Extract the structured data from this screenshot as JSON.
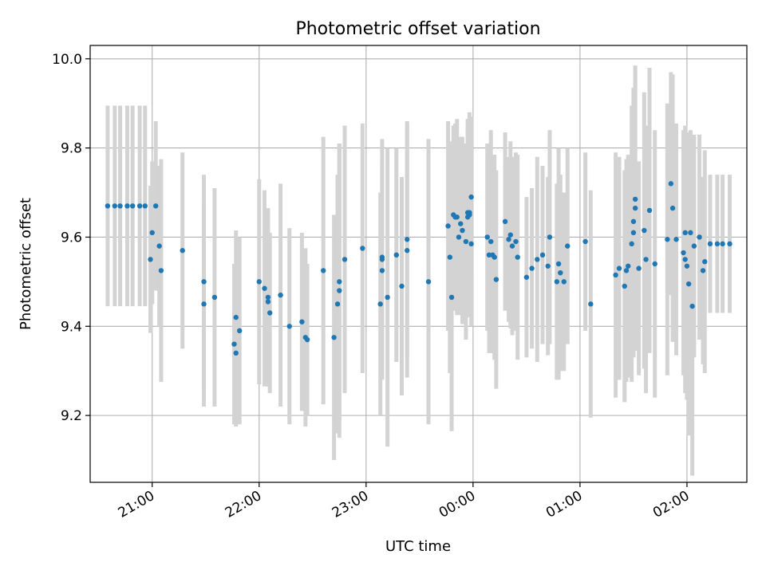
{
  "chart_data": {
    "type": "scatter",
    "title": "Photometric offset variation",
    "xlabel": "UTC time",
    "ylabel": "Photometric offset",
    "x_axis": {
      "kind": "time",
      "unit": "hour",
      "min": 20.42,
      "max": 26.56
    },
    "ylim": [
      9.05,
      10.03
    ],
    "x_ticks": [
      {
        "value": 21,
        "label": "21:00"
      },
      {
        "value": 22,
        "label": "22:00"
      },
      {
        "value": 23,
        "label": "23:00"
      },
      {
        "value": 24,
        "label": "00:00"
      },
      {
        "value": 25,
        "label": "01:00"
      },
      {
        "value": 26,
        "label": "02:00"
      }
    ],
    "y_ticks": [
      {
        "value": 9.2,
        "label": "9.2"
      },
      {
        "value": 9.4,
        "label": "9.4"
      },
      {
        "value": 9.6,
        "label": "9.6"
      },
      {
        "value": 9.8,
        "label": "9.8"
      },
      {
        "value": 10.0,
        "label": "10.0"
      }
    ],
    "grid": true,
    "colors": {
      "point": "#1f77b4",
      "errorbar": "#d3d3d3",
      "grid": "#b0b0b0"
    },
    "series": [
      {
        "points": [
          {
            "x": "20:35",
            "y": 9.67,
            "yerr": 0.225
          },
          {
            "x": "20:39",
            "y": 9.67,
            "yerr": 0.225
          },
          {
            "x": "20:42",
            "y": 9.67,
            "yerr": 0.225
          },
          {
            "x": "20:46",
            "y": 9.67,
            "yerr": 0.225
          },
          {
            "x": "20:49",
            "y": 9.67,
            "yerr": 0.225
          },
          {
            "x": "20:53",
            "y": 9.67,
            "yerr": 0.225
          },
          {
            "x": "20:56",
            "y": 9.67,
            "yerr": 0.225
          },
          {
            "x": "20:59",
            "y": 9.55,
            "yerr": 0.165
          },
          {
            "x": "21:00",
            "y": 9.61,
            "yerr": 0.16
          },
          {
            "x": "21:02",
            "y": 9.67,
            "yerr": 0.19
          },
          {
            "x": "21:04",
            "y": 9.58,
            "yerr": 0.18
          },
          {
            "x": "21:05",
            "y": 9.525,
            "yerr": 0.25
          },
          {
            "x": "21:17",
            "y": 9.57,
            "yerr": 0.22
          },
          {
            "x": "21:29",
            "y": 9.45,
            "yerr": 0.23
          },
          {
            "x": "21:29",
            "y": 9.5,
            "yerr": 0.24
          },
          {
            "x": "21:35",
            "y": 9.465,
            "yerr": 0.245
          },
          {
            "x": "21:46",
            "y": 9.36,
            "yerr": 0.18
          },
          {
            "x": "21:47",
            "y": 9.34,
            "yerr": 0.165
          },
          {
            "x": "21:47",
            "y": 9.42,
            "yerr": 0.195
          },
          {
            "x": "21:49",
            "y": 9.39,
            "yerr": 0.21
          },
          {
            "x": "22:00",
            "y": 9.5,
            "yerr": 0.23
          },
          {
            "x": "22:03",
            "y": 9.485,
            "yerr": 0.22
          },
          {
            "x": "22:05",
            "y": 9.465,
            "yerr": 0.2
          },
          {
            "x": "22:05",
            "y": 9.455,
            "yerr": 0.19
          },
          {
            "x": "22:06",
            "y": 9.43,
            "yerr": 0.18
          },
          {
            "x": "22:12",
            "y": 9.47,
            "yerr": 0.25
          },
          {
            "x": "22:17",
            "y": 9.4,
            "yerr": 0.22
          },
          {
            "x": "22:24",
            "y": 9.41,
            "yerr": 0.2
          },
          {
            "x": "22:26",
            "y": 9.375,
            "yerr": 0.2
          },
          {
            "x": "22:27",
            "y": 9.37,
            "yerr": 0.17
          },
          {
            "x": "22:36",
            "y": 9.525,
            "yerr": 0.3
          },
          {
            "x": "22:42",
            "y": 9.375,
            "yerr": 0.275
          },
          {
            "x": "22:44",
            "y": 9.45,
            "yerr": 0.29
          },
          {
            "x": "22:45",
            "y": 9.5,
            "yerr": 0.31
          },
          {
            "x": "22:45",
            "y": 9.48,
            "yerr": 0.33
          },
          {
            "x": "22:48",
            "y": 9.55,
            "yerr": 0.3
          },
          {
            "x": "22:58",
            "y": 9.575,
            "yerr": 0.28
          },
          {
            "x": "23:08",
            "y": 9.45,
            "yerr": 0.25
          },
          {
            "x": "23:09",
            "y": 9.525,
            "yerr": 0.24
          },
          {
            "x": "23:09",
            "y": 9.555,
            "yerr": 0.245
          },
          {
            "x": "23:09",
            "y": 9.55,
            "yerr": 0.27
          },
          {
            "x": "23:12",
            "y": 9.465,
            "yerr": 0.335
          },
          {
            "x": "23:17",
            "y": 9.56,
            "yerr": 0.24
          },
          {
            "x": "23:20",
            "y": 9.49,
            "yerr": 0.245
          },
          {
            "x": "23:23",
            "y": 9.595,
            "yerr": 0.265
          },
          {
            "x": "23:23",
            "y": 9.57,
            "yerr": 0.285
          },
          {
            "x": "23:35",
            "y": 9.5,
            "yerr": 0.32
          },
          {
            "x": "23:46",
            "y": 9.625,
            "yerr": 0.235
          },
          {
            "x": "23:47",
            "y": 9.555,
            "yerr": 0.26
          },
          {
            "x": "23:48",
            "y": 9.465,
            "yerr": 0.3
          },
          {
            "x": "23:49",
            "y": 9.65,
            "yerr": 0.2
          },
          {
            "x": "23:50",
            "y": 9.645,
            "yerr": 0.21
          },
          {
            "x": "23:51",
            "y": 9.645,
            "yerr": 0.22
          },
          {
            "x": "23:52",
            "y": 9.6,
            "yerr": 0.175
          },
          {
            "x": "23:53",
            "y": 9.63,
            "yerr": 0.195
          },
          {
            "x": "23:54",
            "y": 9.615,
            "yerr": 0.21
          },
          {
            "x": "23:56",
            "y": 9.59,
            "yerr": 0.22
          },
          {
            "x": "23:57",
            "y": 9.655,
            "yerr": 0.2
          },
          {
            "x": "23:57",
            "y": 9.645,
            "yerr": 0.22
          },
          {
            "x": "23:58",
            "y": 9.655,
            "yerr": 0.19
          },
          {
            "x": "23:58",
            "y": 9.65,
            "yerr": 0.23
          },
          {
            "x": "23:59",
            "y": 9.69,
            "yerr": 0.18
          },
          {
            "x": "23:59",
            "y": 9.585,
            "yerr": 0.185
          },
          {
            "x": "00:08",
            "y": 9.6,
            "yerr": 0.21
          },
          {
            "x": "00:09",
            "y": 9.56,
            "yerr": 0.22
          },
          {
            "x": "00:10",
            "y": 9.59,
            "yerr": 0.25
          },
          {
            "x": "00:11",
            "y": 9.56,
            "yerr": 0.22
          },
          {
            "x": "00:12",
            "y": 9.555,
            "yerr": 0.23
          },
          {
            "x": "00:13",
            "y": 9.505,
            "yerr": 0.245
          },
          {
            "x": "00:18",
            "y": 9.635,
            "yerr": 0.2
          },
          {
            "x": "00:20",
            "y": 9.595,
            "yerr": 0.185
          },
          {
            "x": "00:21",
            "y": 9.605,
            "yerr": 0.21
          },
          {
            "x": "00:22",
            "y": 9.58,
            "yerr": 0.2
          },
          {
            "x": "00:24",
            "y": 9.59,
            "yerr": 0.2
          },
          {
            "x": "00:25",
            "y": 9.555,
            "yerr": 0.23
          },
          {
            "x": "00:30",
            "y": 9.51,
            "yerr": 0.18
          },
          {
            "x": "00:33",
            "y": 9.53,
            "yerr": 0.18
          },
          {
            "x": "00:36",
            "y": 9.55,
            "yerr": 0.23
          },
          {
            "x": "00:39",
            "y": 9.56,
            "yerr": 0.2
          },
          {
            "x": "00:42",
            "y": 9.535,
            "yerr": 0.2
          },
          {
            "x": "00:43",
            "y": 9.6,
            "yerr": 0.24
          },
          {
            "x": "00:47",
            "y": 9.5,
            "yerr": 0.22
          },
          {
            "x": "00:48",
            "y": 9.54,
            "yerr": 0.26
          },
          {
            "x": "00:49",
            "y": 9.52,
            "yerr": 0.22
          },
          {
            "x": "00:51",
            "y": 9.5,
            "yerr": 0.2
          },
          {
            "x": "00:53",
            "y": 9.58,
            "yerr": 0.22
          },
          {
            "x": "01:03",
            "y": 9.59,
            "yerr": 0.2
          },
          {
            "x": "01:06",
            "y": 9.45,
            "yerr": 0.255
          },
          {
            "x": "01:20",
            "y": 9.515,
            "yerr": 0.275
          },
          {
            "x": "01:22",
            "y": 9.53,
            "yerr": 0.25
          },
          {
            "x": "01:25",
            "y": 9.49,
            "yerr": 0.26
          },
          {
            "x": "01:26",
            "y": 9.525,
            "yerr": 0.25
          },
          {
            "x": "01:27",
            "y": 9.535,
            "yerr": 0.25
          },
          {
            "x": "01:29",
            "y": 9.585,
            "yerr": 0.31
          },
          {
            "x": "01:30",
            "y": 9.635,
            "yerr": 0.3
          },
          {
            "x": "01:30",
            "y": 9.61,
            "yerr": 0.28
          },
          {
            "x": "01:31",
            "y": 9.665,
            "yerr": 0.32
          },
          {
            "x": "01:31",
            "y": 9.685,
            "yerr": 0.29
          },
          {
            "x": "01:33",
            "y": 9.53,
            "yerr": 0.24
          },
          {
            "x": "01:36",
            "y": 9.615,
            "yerr": 0.31
          },
          {
            "x": "01:37",
            "y": 9.55,
            "yerr": 0.3
          },
          {
            "x": "01:39",
            "y": 9.66,
            "yerr": 0.32
          },
          {
            "x": "01:42",
            "y": 9.54,
            "yerr": 0.3
          },
          {
            "x": "01:49",
            "y": 9.595,
            "yerr": 0.305
          },
          {
            "x": "01:51",
            "y": 9.72,
            "yerr": 0.25
          },
          {
            "x": "01:52",
            "y": 9.665,
            "yerr": 0.3
          },
          {
            "x": "01:54",
            "y": 9.595,
            "yerr": 0.26
          },
          {
            "x": "01:58",
            "y": 9.565,
            "yerr": 0.275
          },
          {
            "x": "01:59",
            "y": 9.55,
            "yerr": 0.3
          },
          {
            "x": "01:59",
            "y": 9.61,
            "yerr": 0.23
          },
          {
            "x": "02:00",
            "y": 9.535,
            "yerr": 0.3
          },
          {
            "x": "02:01",
            "y": 9.495,
            "yerr": 0.34
          },
          {
            "x": "02:02",
            "y": 9.61,
            "yerr": 0.23
          },
          {
            "x": "02:03",
            "y": 9.445,
            "yerr": 0.38
          },
          {
            "x": "02:04",
            "y": 9.58,
            "yerr": 0.25
          },
          {
            "x": "02:07",
            "y": 9.6,
            "yerr": 0.23
          },
          {
            "x": "02:09",
            "y": 9.525,
            "yerr": 0.21
          },
          {
            "x": "02:10",
            "y": 9.545,
            "yerr": 0.25
          },
          {
            "x": "02:13",
            "y": 9.585,
            "yerr": 0.155
          },
          {
            "x": "02:17",
            "y": 9.585,
            "yerr": 0.155
          },
          {
            "x": "02:20",
            "y": 9.585,
            "yerr": 0.155
          },
          {
            "x": "02:24",
            "y": 9.585,
            "yerr": 0.155
          }
        ]
      }
    ]
  }
}
